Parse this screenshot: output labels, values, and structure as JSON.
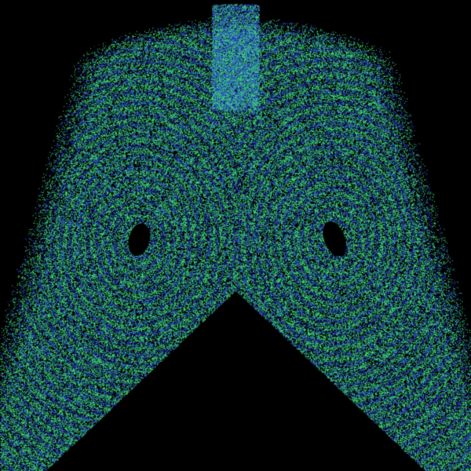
{
  "scene": {
    "subject": "strange-attractor-point-cloud",
    "background_color": "#000000",
    "dot_colors": [
      "#2f45e0",
      "#45f07a"
    ],
    "icon": "attractor-pattern"
  }
}
